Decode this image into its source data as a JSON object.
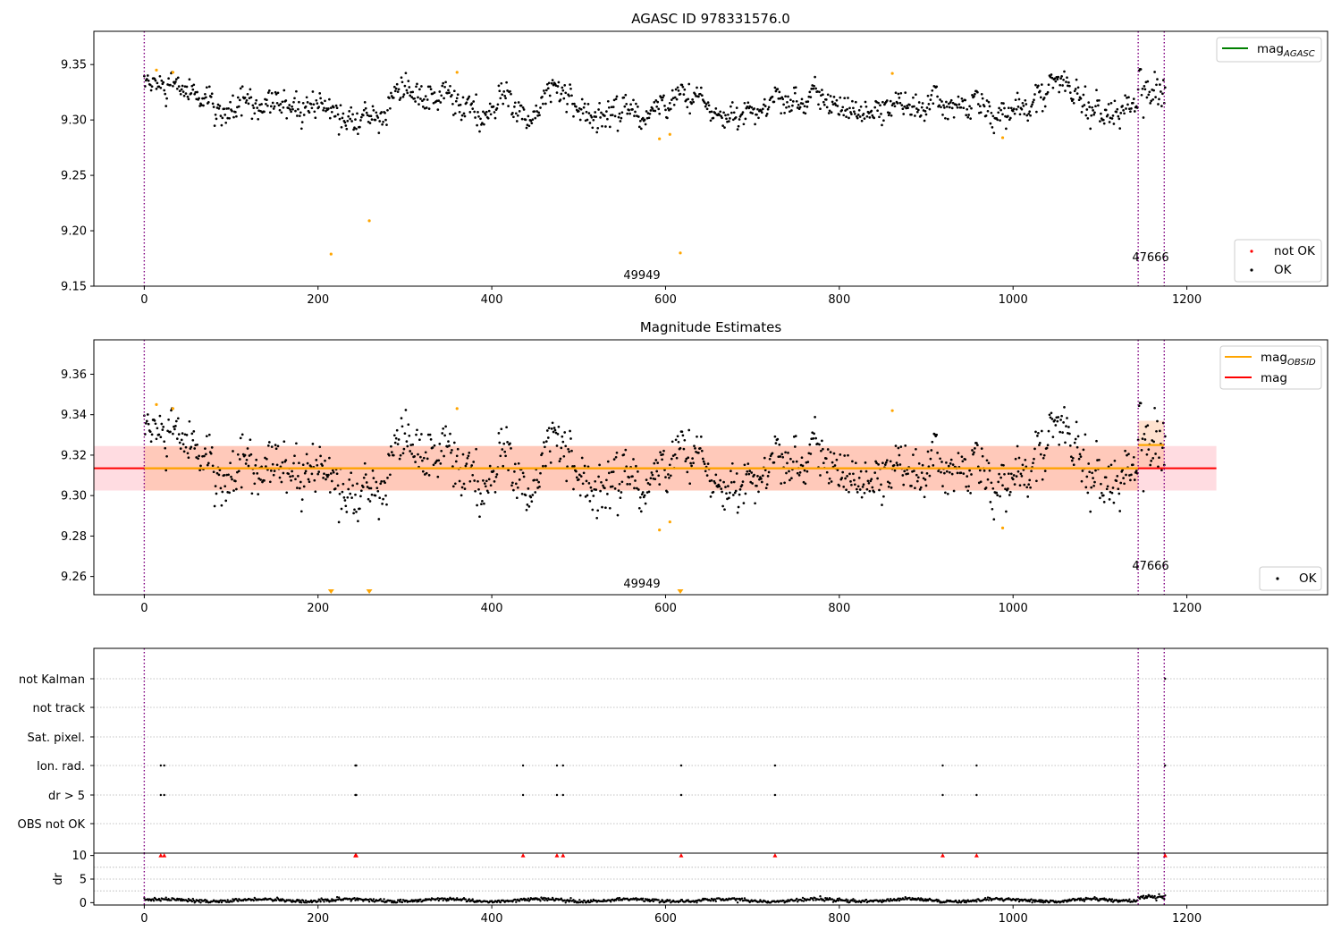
{
  "colors": {
    "ok": "#000000",
    "not_ok": "#ff0000",
    "outlier": "#ffa500",
    "mag_agasc": "#008000",
    "mag_obsid": "#ffa500",
    "mag": "#ff0000",
    "obs_boundary": "#800080",
    "band_red": "#ff9aa8",
    "band_orange": "#ffa060",
    "grid": "#b0b0b0"
  },
  "chart_data": [
    {
      "type": "scatter",
      "title": "AGASC ID 978331576.0",
      "xlabel": "",
      "ylabel": "",
      "xlim": [
        -58,
        1362
      ],
      "ylim": [
        9.15,
        9.38
      ],
      "xticks": [
        "0",
        "200",
        "400",
        "600",
        "800",
        "1000",
        "1200"
      ],
      "yticks": [
        "9.15",
        "9.20",
        "9.25",
        "9.30",
        "9.35"
      ],
      "n_points": 1176,
      "obs_boundaries": [
        0,
        1144,
        1174
      ],
      "obsid_labels": [
        {
          "text": "49949",
          "x": 572,
          "y": 9.16
        },
        {
          "text": "47666",
          "x": 1159,
          "y": 9.176
        }
      ],
      "series": [
        {
          "name": "OK",
          "mean": 9.314,
          "std": 0.009
        },
        {
          "name": "not OK",
          "values": []
        }
      ],
      "outliers": [
        [
          14,
          9.345
        ],
        [
          33,
          9.343
        ],
        [
          215,
          9.179
        ],
        [
          259,
          9.209
        ],
        [
          360,
          9.343
        ],
        [
          593,
          9.283
        ],
        [
          605,
          9.287
        ],
        [
          617,
          9.18
        ],
        [
          861,
          9.342
        ],
        [
          988,
          9.284
        ]
      ],
      "legend": [
        {
          "label": "mag",
          "sub": "AGASC",
          "style": "line",
          "position": "top-right"
        },
        {
          "label": "not OK",
          "style": "dot",
          "position": "bottom-right"
        },
        {
          "label": "OK",
          "style": "dot",
          "position": "bottom-right"
        }
      ]
    },
    {
      "type": "scatter",
      "title": "Magnitude Estimates",
      "xlabel": "",
      "ylabel": "",
      "xlim": [
        -58,
        1362
      ],
      "ylim": [
        9.251,
        9.377
      ],
      "xticks": [
        "0",
        "200",
        "400",
        "600",
        "800",
        "1000",
        "1200"
      ],
      "yticks": [
        "9.26",
        "9.28",
        "9.30",
        "9.32",
        "9.34",
        "9.36"
      ],
      "obs_boundaries": [
        0,
        1144,
        1174
      ],
      "obsid_labels": [
        {
          "text": "49949",
          "x": 572,
          "y": 9.2554
        },
        {
          "text": "47666",
          "x": 1159,
          "y": 9.2642
        }
      ],
      "mag": 9.3135,
      "mag_band": [
        9.3025,
        9.3245
      ],
      "mag_obsid": [
        {
          "x0": 0,
          "x1": 1144,
          "value": 9.3135,
          "band": [
            9.3025,
            9.3245
          ]
        },
        {
          "x0": 1144,
          "x1": 1174,
          "value": 9.325,
          "band": [
            9.313,
            9.337
          ]
        }
      ],
      "outliers_below_axis": [
        215,
        259,
        617
      ],
      "legend": [
        {
          "label": "mag",
          "sub": "OBSID",
          "style": "line",
          "position": "top-right"
        },
        {
          "label": "mag",
          "style": "line",
          "position": "top-right"
        },
        {
          "label": "OK",
          "style": "dot",
          "position": "bottom-right"
        }
      ]
    },
    {
      "type": "scatter",
      "title": "",
      "xlim": [
        -58,
        1362
      ],
      "categories": [
        "not Kalman",
        "not track",
        "Sat. pixel.",
        "Ion. rad.",
        "dr > 5",
        "OBS not OK"
      ],
      "grid": true,
      "flag_points": [
        {
          "category": "Ion. rad.",
          "x": [
            19,
            23,
            243,
            244,
            436,
            475,
            482,
            618,
            726,
            919,
            958,
            1175
          ]
        },
        {
          "category": "dr > 5",
          "x": [
            19,
            23,
            243,
            244,
            436,
            475,
            482,
            618,
            726,
            919,
            958
          ]
        },
        {
          "category": "not Kalman",
          "x": [
            1175
          ]
        }
      ]
    },
    {
      "type": "scatter",
      "title": "",
      "xlabel": "",
      "ylabel": "dr",
      "xlim": [
        -58,
        1362
      ],
      "ylim": [
        -0.5,
        10.5
      ],
      "xticks": [
        "0",
        "200",
        "400",
        "600",
        "800",
        "1000",
        "1200"
      ],
      "yticks": [
        "0",
        "5",
        "10"
      ],
      "capped_at": 10,
      "capped_x": [
        19,
        23,
        243,
        244,
        436,
        475,
        482,
        618,
        726,
        919,
        958,
        1175
      ],
      "dr_typical": 0.5
    }
  ]
}
